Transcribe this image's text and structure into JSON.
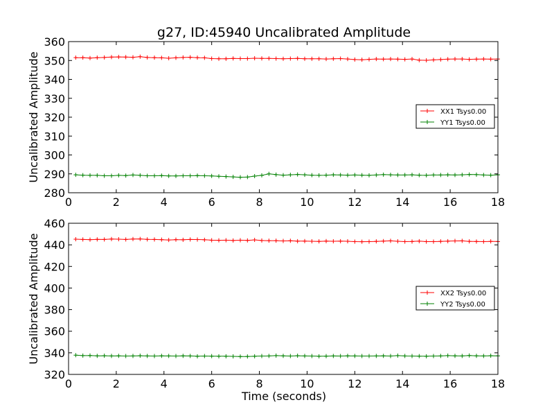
{
  "chart_data": [
    {
      "type": "line",
      "title": "g27, ID:45940 Uncalibrated Amplitude",
      "xlabel": "",
      "ylabel": "Uncalibrated Amplitude",
      "xlim": [
        0,
        18
      ],
      "ylim": [
        280,
        360
      ],
      "xticks": [
        0,
        2,
        4,
        6,
        8,
        10,
        12,
        14,
        16,
        18
      ],
      "yticks": [
        280,
        290,
        300,
        310,
        320,
        330,
        340,
        350,
        360
      ],
      "grid": false,
      "legend_position": "right",
      "x": [
        0.3,
        0.6,
        0.9,
        1.2,
        1.5,
        1.8,
        2.1,
        2.4,
        2.7,
        3.0,
        3.3,
        3.6,
        3.9,
        4.2,
        4.5,
        4.8,
        5.1,
        5.4,
        5.7,
        6.0,
        6.3,
        6.6,
        6.9,
        7.2,
        7.5,
        7.8,
        8.1,
        8.4,
        8.7,
        9.0,
        9.3,
        9.6,
        9.9,
        10.2,
        10.5,
        10.8,
        11.1,
        11.4,
        11.7,
        12.0,
        12.3,
        12.6,
        12.9,
        13.2,
        13.5,
        13.8,
        14.1,
        14.4,
        14.7,
        15.0,
        15.3,
        15.6,
        15.9,
        16.2,
        16.5,
        16.8,
        17.1,
        17.4,
        17.7,
        18.0
      ],
      "series": [
        {
          "name": "XX1 Tsys0.00",
          "color": "#ff0000",
          "values": [
            351.5,
            351.5,
            351.3,
            351.5,
            351.6,
            351.8,
            351.9,
            351.8,
            351.7,
            352.0,
            351.6,
            351.5,
            351.4,
            351.2,
            351.4,
            351.6,
            351.7,
            351.5,
            351.4,
            351.0,
            350.9,
            350.9,
            351.1,
            351.0,
            351.0,
            351.2,
            351.1,
            351.1,
            351.0,
            350.9,
            351.0,
            351.1,
            350.9,
            350.9,
            350.9,
            350.8,
            350.9,
            351.0,
            350.8,
            350.5,
            350.4,
            350.6,
            350.8,
            350.7,
            350.8,
            350.7,
            350.6,
            350.8,
            350.2,
            350.1,
            350.3,
            350.5,
            350.7,
            350.8,
            350.8,
            350.6,
            350.7,
            350.8,
            350.7,
            350.8
          ]
        },
        {
          "name": "YY1 Tsys0.00",
          "color": "#008000",
          "values": [
            289.5,
            289.3,
            289.2,
            289.2,
            289.0,
            289.0,
            289.2,
            289.1,
            289.4,
            289.2,
            289.0,
            289.0,
            289.1,
            288.9,
            288.9,
            289.0,
            289.0,
            289.1,
            289.0,
            288.9,
            288.7,
            288.6,
            288.4,
            288.2,
            288.3,
            288.8,
            289.2,
            290.0,
            289.6,
            289.3,
            289.5,
            289.7,
            289.5,
            289.3,
            289.2,
            289.3,
            289.5,
            289.4,
            289.3,
            289.4,
            289.3,
            289.2,
            289.4,
            289.6,
            289.5,
            289.4,
            289.4,
            289.5,
            289.3,
            289.2,
            289.4,
            289.4,
            289.5,
            289.4,
            289.5,
            289.7,
            289.6,
            289.4,
            289.3,
            289.5
          ]
        }
      ]
    },
    {
      "type": "line",
      "title": "",
      "xlabel": "Time (seconds)",
      "ylabel": "Uncalibrated Amplitude",
      "xlim": [
        0,
        18
      ],
      "ylim": [
        320,
        460
      ],
      "xticks": [
        0,
        2,
        4,
        6,
        8,
        10,
        12,
        14,
        16,
        18
      ],
      "yticks": [
        320,
        340,
        360,
        380,
        400,
        420,
        440,
        460
      ],
      "grid": false,
      "legend_position": "right",
      "x": [
        0.3,
        0.6,
        0.9,
        1.2,
        1.5,
        1.8,
        2.1,
        2.4,
        2.7,
        3.0,
        3.3,
        3.6,
        3.9,
        4.2,
        4.5,
        4.8,
        5.1,
        5.4,
        5.7,
        6.0,
        6.3,
        6.6,
        6.9,
        7.2,
        7.5,
        7.8,
        8.1,
        8.4,
        8.7,
        9.0,
        9.3,
        9.6,
        9.9,
        10.2,
        10.5,
        10.8,
        11.1,
        11.4,
        11.7,
        12.0,
        12.3,
        12.6,
        12.9,
        13.2,
        13.5,
        13.8,
        14.1,
        14.4,
        14.7,
        15.0,
        15.3,
        15.6,
        15.9,
        16.2,
        16.5,
        16.8,
        17.1,
        17.4,
        17.7,
        18.0
      ],
      "series": [
        {
          "name": "XX2 Tsys0.00",
          "color": "#ff0000",
          "values": [
            445.2,
            445.0,
            444.8,
            445.1,
            445.0,
            445.4,
            445.2,
            445.0,
            445.4,
            445.5,
            445.1,
            445.0,
            444.8,
            444.5,
            444.8,
            444.7,
            445.0,
            444.9,
            444.7,
            444.3,
            444.2,
            444.3,
            444.0,
            444.3,
            444.1,
            444.6,
            444.0,
            443.9,
            443.9,
            443.6,
            443.8,
            443.4,
            443.5,
            443.3,
            443.2,
            443.5,
            443.3,
            443.4,
            443.3,
            443.0,
            442.9,
            443.0,
            443.2,
            443.5,
            443.7,
            443.3,
            443.0,
            443.1,
            443.4,
            443.0,
            443.0,
            443.2,
            443.4,
            443.6,
            443.7,
            443.2,
            443.1,
            443.0,
            443.2,
            443.1
          ]
        },
        {
          "name": "YY2 Tsys0.00",
          "color": "#008000",
          "values": [
            337.8,
            337.4,
            337.5,
            337.2,
            337.3,
            337.1,
            337.2,
            337.0,
            337.1,
            337.3,
            337.1,
            337.0,
            337.2,
            337.1,
            337.0,
            337.2,
            337.1,
            336.8,
            337.0,
            336.9,
            336.8,
            336.8,
            336.7,
            336.5,
            336.6,
            336.8,
            337.0,
            337.1,
            337.4,
            337.2,
            337.0,
            337.3,
            337.1,
            337.0,
            336.8,
            336.9,
            337.1,
            337.0,
            337.2,
            337.1,
            337.0,
            337.0,
            337.1,
            337.2,
            337.0,
            337.4,
            337.1,
            337.0,
            336.9,
            336.8,
            337.0,
            337.1,
            337.4,
            337.2,
            337.1,
            337.5,
            337.2,
            337.1,
            337.3,
            337.2
          ]
        }
      ]
    }
  ]
}
